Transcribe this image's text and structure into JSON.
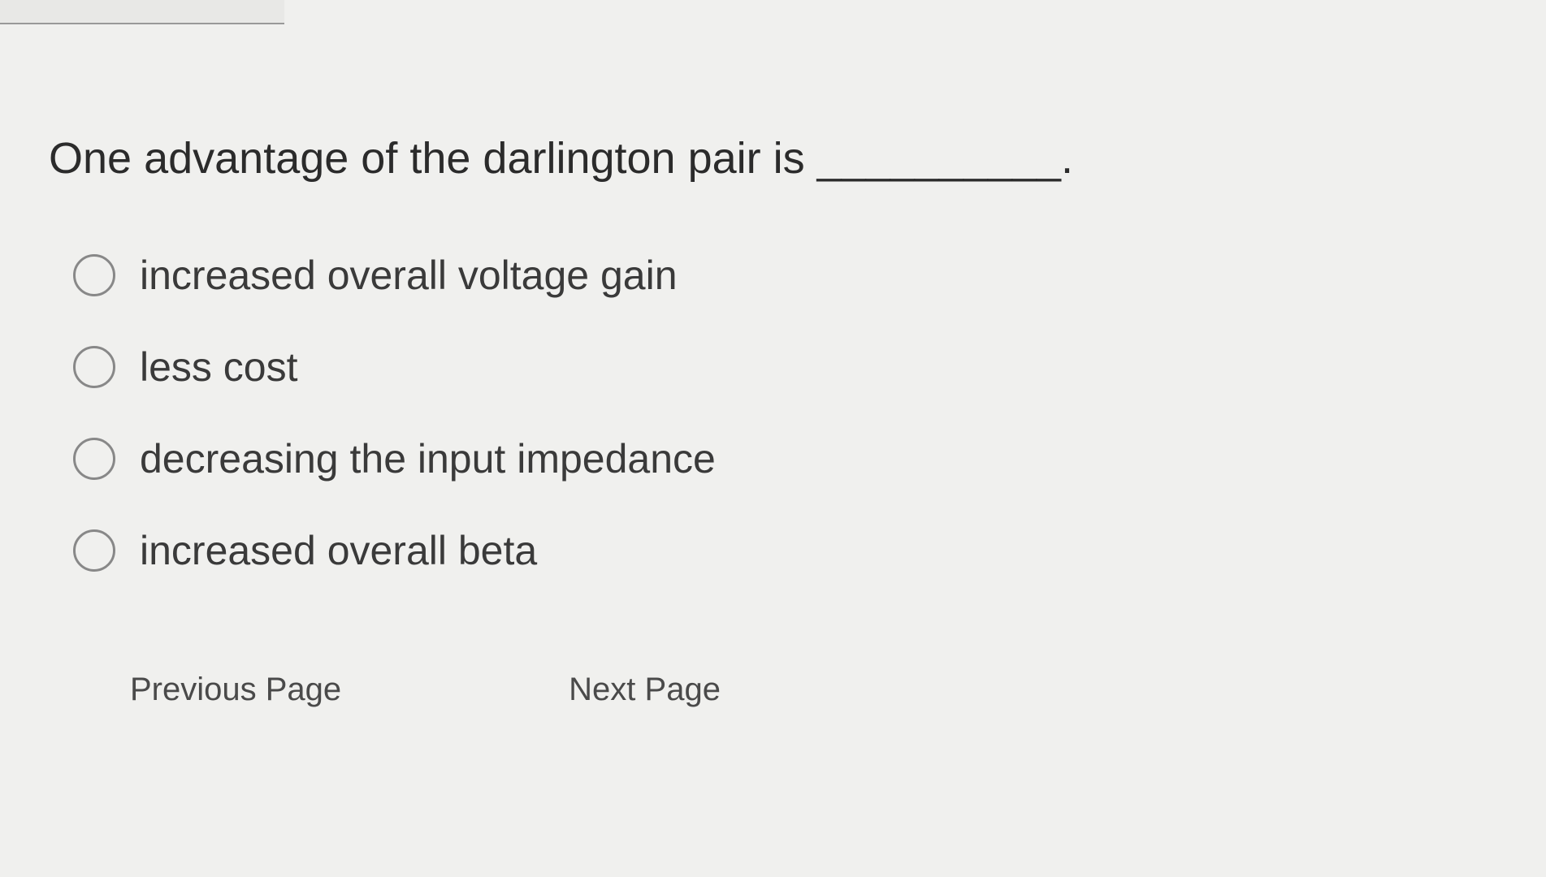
{
  "question": {
    "text": "One advantage of the darlington pair is __________."
  },
  "options": [
    {
      "label": "increased overall voltage gain"
    },
    {
      "label": "less cost"
    },
    {
      "label": "decreasing the input impedance"
    },
    {
      "label": "increased overall beta"
    }
  ],
  "navigation": {
    "previous_label": "Previous Page",
    "next_label": "Next Page"
  },
  "colors": {
    "background": "#f0f0ee",
    "text": "#3a3a3a",
    "radio_border": "#888888"
  }
}
